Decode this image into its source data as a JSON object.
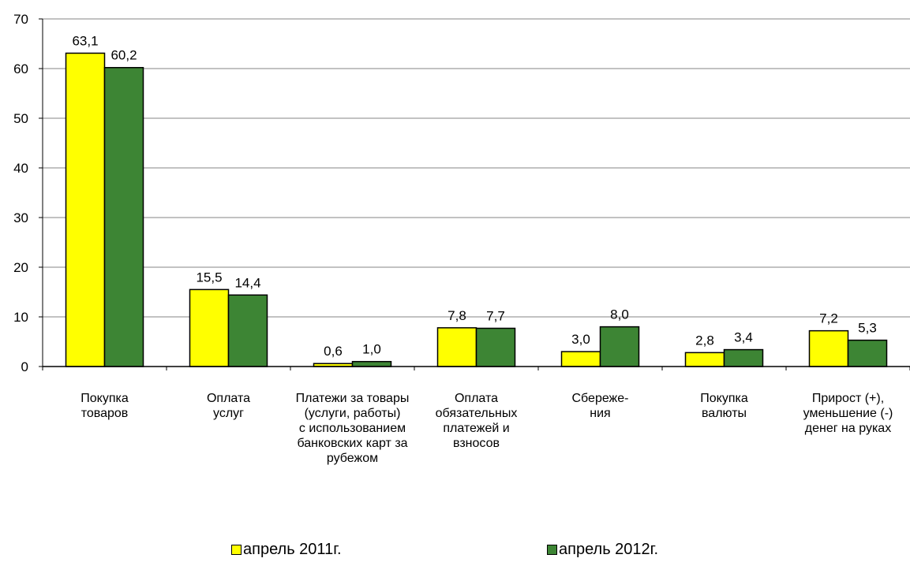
{
  "chart_data": {
    "type": "bar",
    "categories": [
      "Покупка товаров",
      "Оплата услуг",
      "Платежи за товары (услуги, работы) с использованием банковских карт за рубежом",
      "Оплата обязательных платежей и взносов",
      "Сбереже-ния",
      "Покупка валюты",
      "Прирост (+), уменьшение (-) денег на руках"
    ],
    "category_lines": [
      [
        "Покупка",
        "товаров"
      ],
      [
        "Оплата",
        "услуг"
      ],
      [
        "Платежи за товары",
        "(услуги, работы)",
        "с использованием",
        "банковских карт за",
        "рубежом"
      ],
      [
        "Оплата",
        "обязательных",
        "платежей и",
        "взносов"
      ],
      [
        "Сбереже-",
        "ния"
      ],
      [
        "Покупка",
        "валюты"
      ],
      [
        "Прирост (+),",
        "уменьшение (-)",
        "денег на руках"
      ]
    ],
    "series": [
      {
        "name": "апрель 2011г.",
        "color": "#ffff00",
        "values": [
          63.1,
          15.5,
          0.6,
          7.8,
          3.0,
          2.8,
          7.2
        ],
        "labels": [
          "63,1",
          "15,5",
          "0,6",
          "7,8",
          "3,0",
          "2,8",
          "7,2"
        ]
      },
      {
        "name": "апрель 2012г.",
        "color": "#3d8534",
        "values": [
          60.2,
          14.4,
          1.0,
          7.7,
          8.0,
          3.4,
          5.3
        ],
        "labels": [
          "60,2",
          "14,4",
          "1,0",
          "7,7",
          "8,0",
          "3,4",
          "5,3"
        ]
      }
    ],
    "ylim": [
      0,
      70
    ],
    "yticks": [
      0,
      10,
      20,
      30,
      40,
      50,
      60,
      70
    ],
    "grid": true,
    "legend_position": "bottom",
    "title": "",
    "xlabel": "",
    "ylabel": ""
  },
  "legend": {
    "item_2011": "апрель 2011г.",
    "item_2012": "апрель 2012г."
  }
}
